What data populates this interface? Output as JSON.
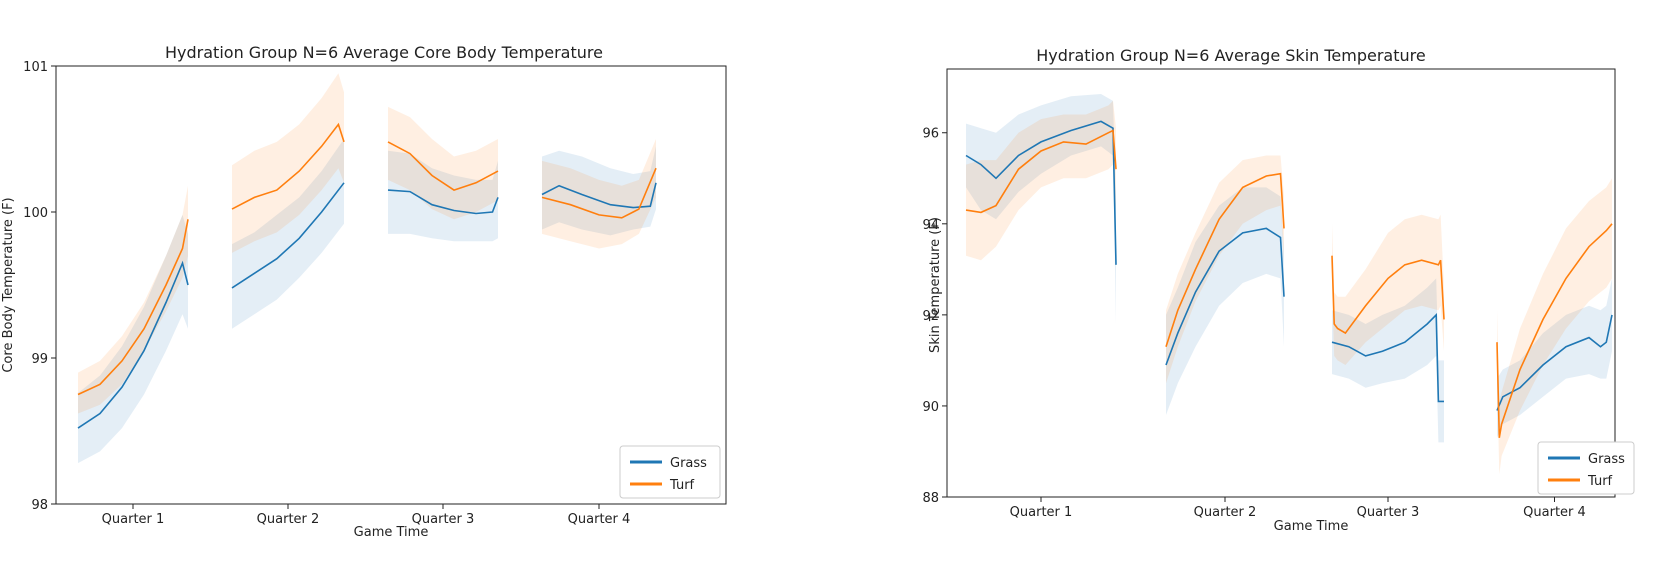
{
  "colors": {
    "grass": "#1f77b4",
    "turf": "#ff7f0e"
  },
  "chart_data": [
    {
      "type": "line",
      "title": "Hydration Group N=6 Average Core Body Temperature",
      "xlabel": "Game Time",
      "ylabel": "Core Body Temperature (F)",
      "ylim": [
        98,
        101
      ],
      "yticks": [
        98,
        99,
        100,
        101
      ],
      "categories": [
        "Quarter 1",
        "Quarter 2",
        "Quarter 3",
        "Quarter 4"
      ],
      "legend_position": "bottom-right",
      "series": [
        {
          "name": "Grass",
          "color_key": "grass",
          "segments": [
            {
              "x": [
                0,
                0.2,
                0.4,
                0.6,
                0.8,
                0.95,
                1.0
              ],
              "y": [
                98.52,
                98.62,
                98.8,
                99.05,
                99.38,
                99.65,
                99.5
              ],
              "lower": [
                98.28,
                98.36,
                98.52,
                98.75,
                99.05,
                99.3,
                99.2
              ],
              "upper": [
                98.76,
                98.88,
                99.08,
                99.35,
                99.7,
                99.98,
                99.85
              ]
            },
            {
              "x": [
                0,
                0.2,
                0.4,
                0.6,
                0.8,
                1.0
              ],
              "y": [
                99.48,
                99.58,
                99.68,
                99.82,
                100.0,
                100.2
              ],
              "lower": [
                99.2,
                99.3,
                99.4,
                99.55,
                99.72,
                99.92
              ],
              "upper": [
                99.78,
                99.86,
                99.98,
                100.1,
                100.28,
                100.5
              ]
            },
            {
              "x": [
                0,
                0.2,
                0.4,
                0.6,
                0.8,
                0.95,
                1.0
              ],
              "y": [
                100.15,
                100.14,
                100.05,
                100.01,
                99.99,
                100.0,
                100.1
              ],
              "lower": [
                99.85,
                99.85,
                99.82,
                99.8,
                99.8,
                99.8,
                99.82
              ],
              "upper": [
                100.42,
                100.4,
                100.3,
                100.25,
                100.22,
                100.22,
                100.35
              ]
            },
            {
              "x": [
                0,
                0.15,
                0.35,
                0.6,
                0.8,
                0.95,
                1.0
              ],
              "y": [
                100.12,
                100.18,
                100.12,
                100.05,
                100.03,
                100.04,
                100.2
              ],
              "lower": [
                99.88,
                99.93,
                99.88,
                99.84,
                99.88,
                99.9,
                100.02
              ],
              "upper": [
                100.38,
                100.42,
                100.38,
                100.3,
                100.26,
                100.28,
                100.45
              ]
            }
          ]
        },
        {
          "name": "Turf",
          "color_key": "turf",
          "segments": [
            {
              "x": [
                0,
                0.2,
                0.4,
                0.6,
                0.8,
                0.95,
                1.0
              ],
              "y": [
                98.75,
                98.82,
                98.98,
                99.2,
                99.5,
                99.75,
                99.95
              ],
              "lower": [
                98.62,
                98.68,
                98.82,
                99.05,
                99.32,
                99.55,
                99.7
              ],
              "upper": [
                98.9,
                98.98,
                99.15,
                99.38,
                99.7,
                99.98,
                100.18
              ]
            },
            {
              "x": [
                0,
                0.2,
                0.4,
                0.6,
                0.8,
                0.95,
                1.0
              ],
              "y": [
                100.02,
                100.1,
                100.15,
                100.28,
                100.45,
                100.6,
                100.48
              ],
              "lower": [
                99.72,
                99.8,
                99.86,
                99.98,
                100.15,
                100.3,
                100.2
              ],
              "upper": [
                100.32,
                100.42,
                100.48,
                100.6,
                100.78,
                100.95,
                100.82
              ]
            },
            {
              "x": [
                0,
                0.2,
                0.4,
                0.6,
                0.8,
                1.0
              ],
              "y": [
                100.48,
                100.4,
                100.25,
                100.15,
                100.2,
                100.28
              ],
              "lower": [
                100.22,
                100.15,
                100.02,
                99.95,
                100.0,
                100.08
              ],
              "upper": [
                100.72,
                100.65,
                100.5,
                100.38,
                100.42,
                100.5
              ]
            },
            {
              "x": [
                0,
                0.25,
                0.5,
                0.7,
                0.85,
                1.0
              ],
              "y": [
                100.1,
                100.05,
                99.98,
                99.96,
                100.02,
                100.3
              ],
              "lower": [
                99.85,
                99.8,
                99.75,
                99.78,
                99.85,
                100.1
              ],
              "upper": [
                100.35,
                100.3,
                100.22,
                100.18,
                100.22,
                100.5
              ]
            }
          ]
        }
      ]
    },
    {
      "type": "line",
      "title": "Hydration Group N=6 Average Skin Temperature",
      "xlabel": "Game Time",
      "ylabel": "Skin Temperature (F)",
      "ylim": [
        88,
        97.4
      ],
      "yticks": [
        88,
        90,
        92,
        94,
        96
      ],
      "categories": [
        "Quarter 1",
        "Quarter 2",
        "Quarter 3",
        "Quarter 4"
      ],
      "legend_position": "bottom-right",
      "series": [
        {
          "name": "Grass",
          "color_key": "grass",
          "segments": [
            {
              "x": [
                0,
                0.1,
                0.2,
                0.35,
                0.5,
                0.7,
                0.9,
                0.98,
                1.0
              ],
              "y": [
                95.5,
                95.3,
                95.0,
                95.5,
                95.8,
                96.05,
                96.25,
                96.1,
                93.1
              ],
              "lower": [
                94.8,
                94.3,
                94.1,
                94.7,
                95.1,
                95.5,
                95.7,
                95.5,
                91.8
              ],
              "upper": [
                96.2,
                96.1,
                96.0,
                96.4,
                96.6,
                96.8,
                96.85,
                96.7,
                94.4
              ]
            },
            {
              "x": [
                0,
                0.1,
                0.25,
                0.45,
                0.65,
                0.85,
                0.97,
                1.0
              ],
              "y": [
                90.9,
                91.6,
                92.5,
                93.4,
                93.8,
                93.9,
                93.7,
                92.4
              ],
              "lower": [
                89.8,
                90.5,
                91.3,
                92.2,
                92.7,
                92.9,
                92.8,
                91.3
              ],
              "upper": [
                92.0,
                92.6,
                93.6,
                94.4,
                94.8,
                94.8,
                94.6,
                93.4
              ]
            },
            {
              "x": [
                0,
                0.15,
                0.3,
                0.45,
                0.65,
                0.85,
                0.93,
                0.95,
                1.0
              ],
              "y": [
                91.4,
                91.3,
                91.1,
                91.2,
                91.4,
                91.8,
                92.0,
                90.1,
                90.1
              ],
              "lower": [
                90.7,
                90.6,
                90.4,
                90.5,
                90.6,
                90.9,
                91.1,
                89.2,
                89.2
              ],
              "upper": [
                92.1,
                92.0,
                91.8,
                92.0,
                92.2,
                92.6,
                92.8,
                91.0,
                91.0
              ]
            },
            {
              "x": [
                0,
                0.05,
                0.2,
                0.4,
                0.6,
                0.8,
                0.9,
                0.95,
                1.0
              ],
              "y": [
                89.9,
                90.2,
                90.4,
                90.9,
                91.3,
                91.5,
                91.3,
                91.4,
                92.0
              ],
              "lower": [
                89.3,
                89.6,
                89.8,
                90.2,
                90.6,
                90.7,
                90.6,
                90.6,
                91.2
              ],
              "upper": [
                90.6,
                90.8,
                91.0,
                91.6,
                92.0,
                92.2,
                92.1,
                92.2,
                92.8
              ]
            }
          ]
        },
        {
          "name": "Turf",
          "color_key": "turf",
          "segments": [
            {
              "x": [
                0,
                0.1,
                0.2,
                0.35,
                0.5,
                0.65,
                0.8,
                0.95,
                0.98,
                1.0
              ],
              "y": [
                94.3,
                94.25,
                94.4,
                95.2,
                95.6,
                95.8,
                95.75,
                96.0,
                96.05,
                95.2
              ],
              "lower": [
                93.3,
                93.2,
                93.5,
                94.3,
                94.8,
                95.0,
                95.0,
                95.2,
                95.3,
                94.3
              ],
              "upper": [
                95.3,
                95.4,
                95.4,
                96.0,
                96.3,
                96.4,
                96.4,
                96.6,
                96.7,
                96.1
              ]
            },
            {
              "x": [
                0,
                0.1,
                0.25,
                0.45,
                0.65,
                0.85,
                0.97,
                1.0
              ],
              "y": [
                91.3,
                92.1,
                93.0,
                94.1,
                94.8,
                95.05,
                95.1,
                93.9
              ],
              "lower": [
                90.5,
                91.3,
                92.3,
                93.3,
                94.0,
                94.3,
                94.4,
                93.2
              ],
              "upper": [
                92.1,
                92.9,
                93.8,
                94.9,
                95.4,
                95.5,
                95.5,
                94.6
              ]
            },
            {
              "x": [
                0,
                0.02,
                0.05,
                0.12,
                0.3,
                0.5,
                0.65,
                0.8,
                0.95,
                0.97,
                1.0
              ],
              "y": [
                93.3,
                91.8,
                91.7,
                91.6,
                92.2,
                92.8,
                93.1,
                93.2,
                93.1,
                93.2,
                91.9
              ],
              "lower": [
                92.6,
                91.1,
                91.0,
                90.9,
                91.4,
                91.8,
                92.1,
                92.2,
                92.1,
                92.2,
                91.2
              ],
              "upper": [
                94.0,
                92.5,
                92.4,
                92.4,
                93.0,
                93.8,
                94.1,
                94.2,
                94.1,
                94.2,
                92.6
              ]
            },
            {
              "x": [
                0,
                0.02,
                0.04,
                0.2,
                0.4,
                0.6,
                0.8,
                0.95,
                1.0
              ],
              "y": [
                91.4,
                89.3,
                89.6,
                90.8,
                91.9,
                92.8,
                93.5,
                93.85,
                94.0
              ],
              "lower": [
                90.7,
                88.5,
                88.9,
                89.9,
                90.9,
                91.7,
                92.3,
                92.6,
                92.8
              ],
              "upper": [
                92.1,
                90.1,
                90.3,
                91.7,
                92.9,
                93.9,
                94.5,
                94.8,
                95.0
              ]
            }
          ]
        }
      ]
    }
  ]
}
